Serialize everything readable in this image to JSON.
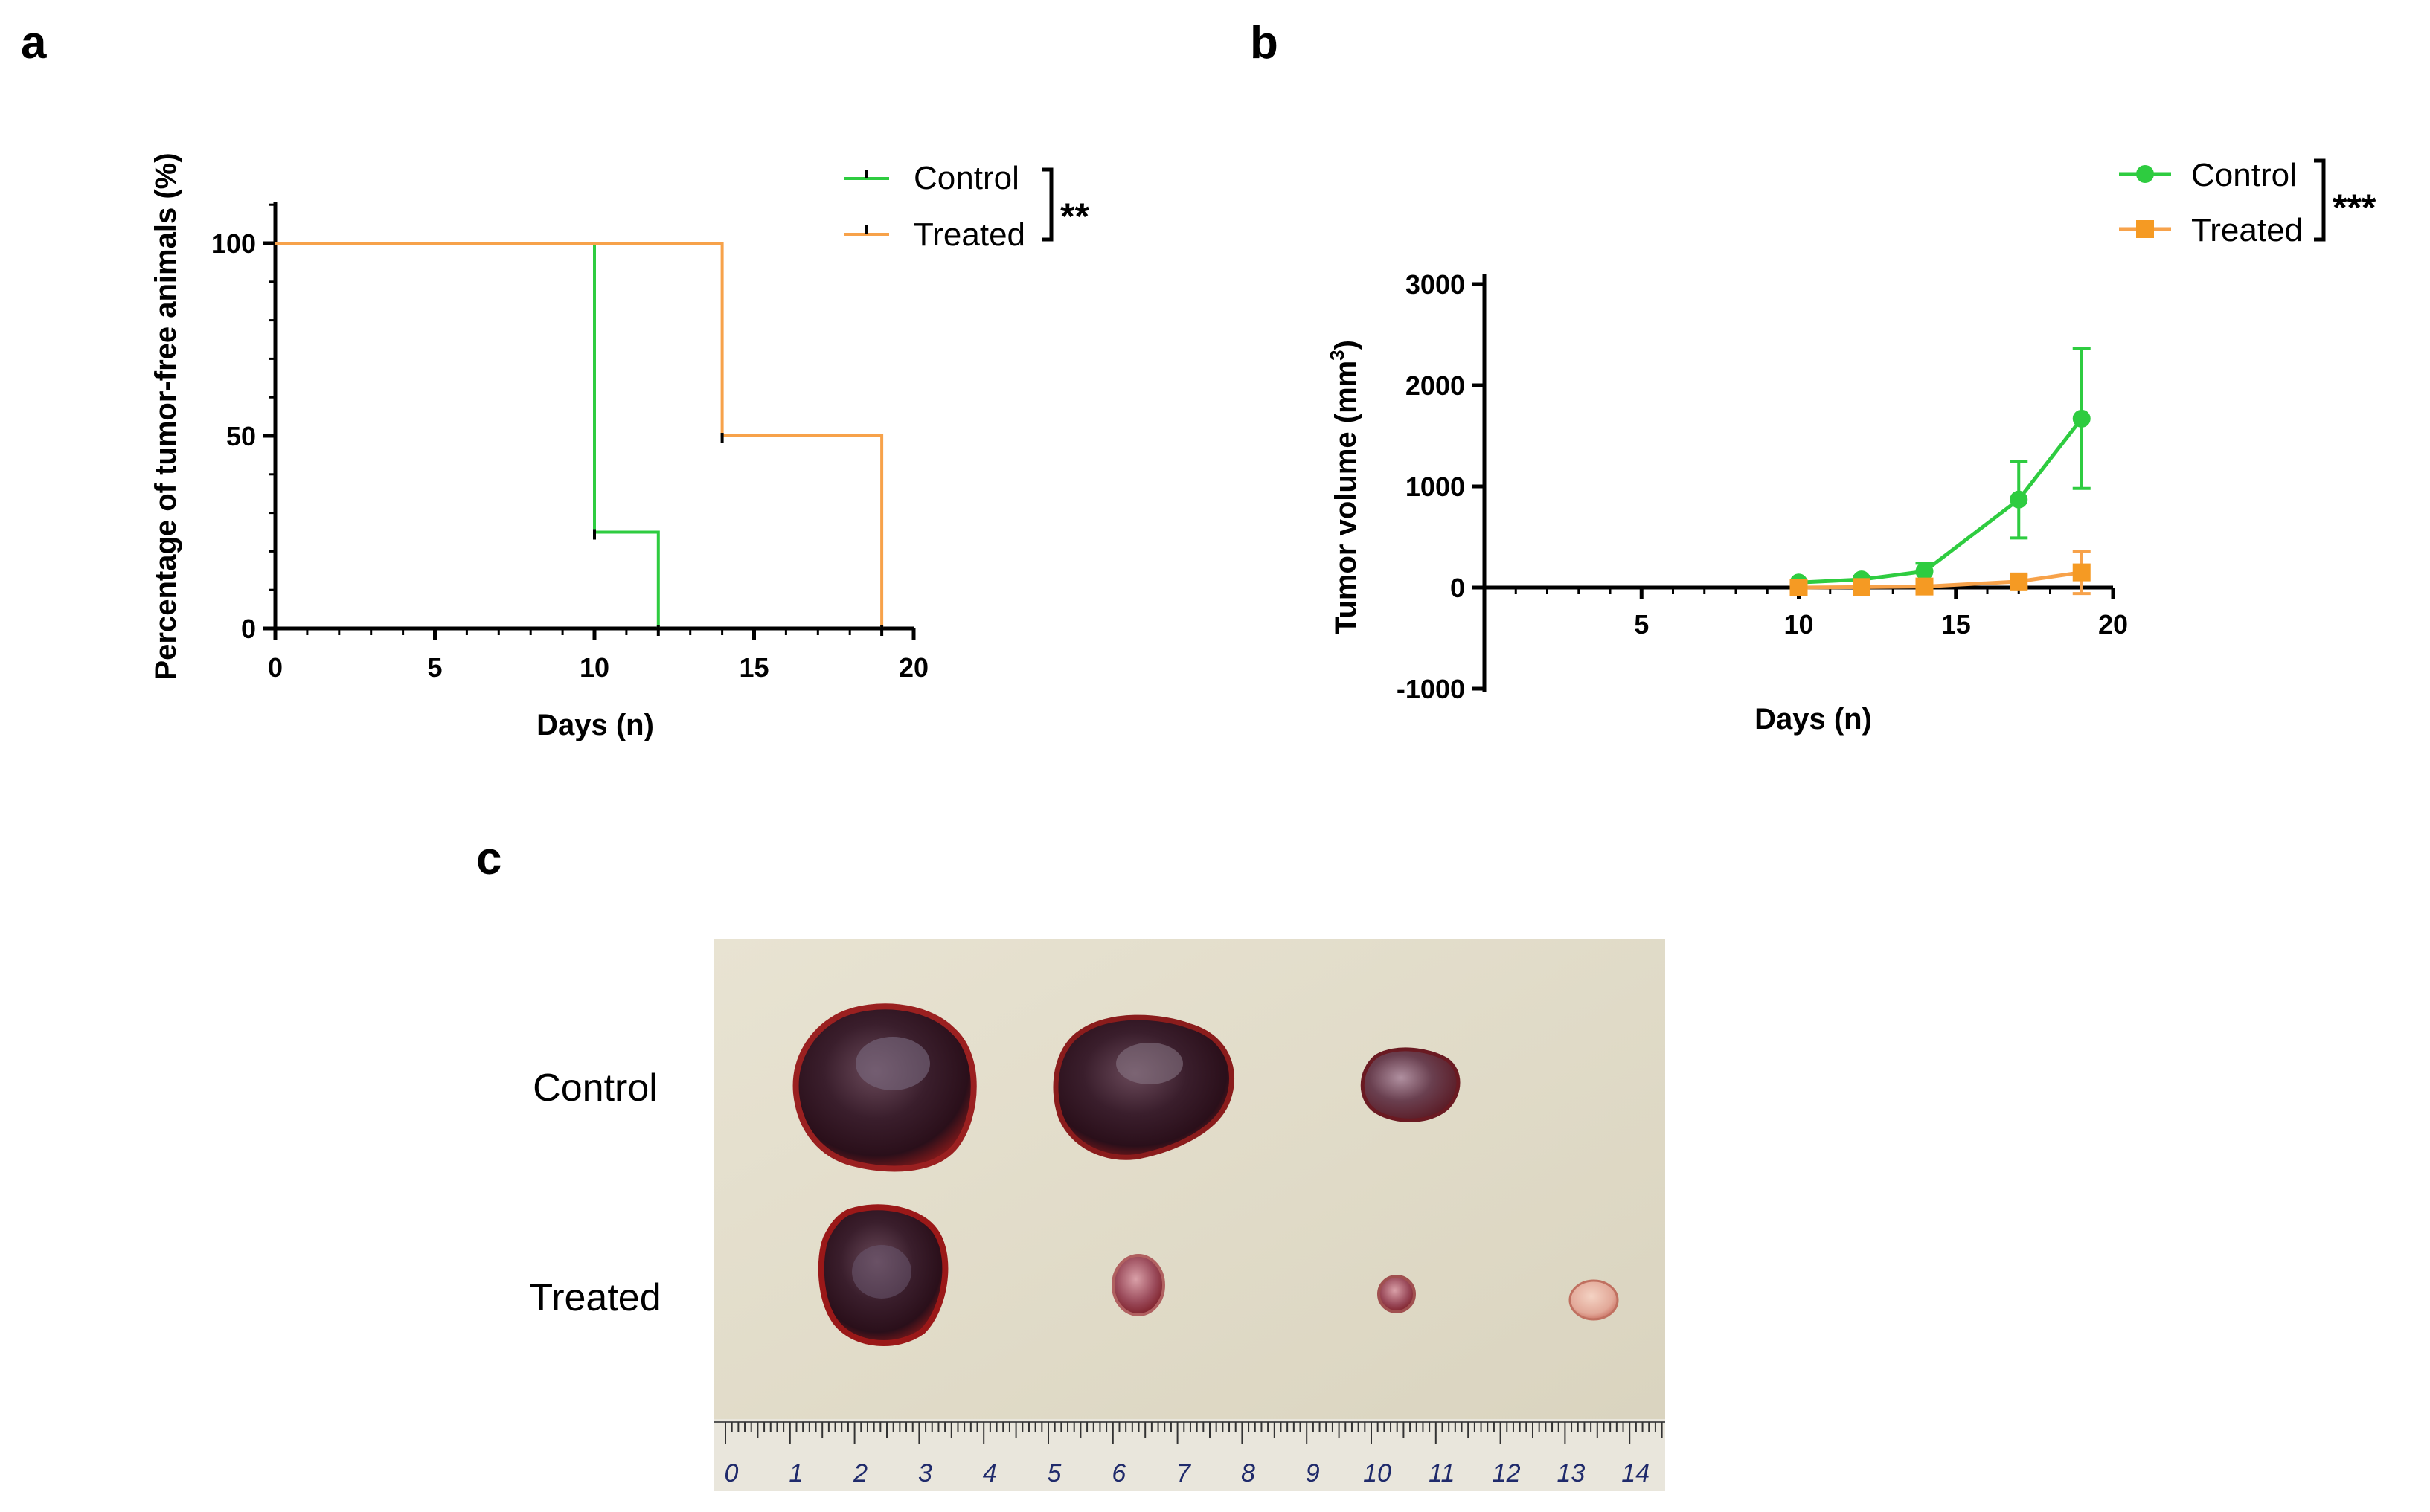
{
  "panels": {
    "a": "a",
    "b": "b",
    "c": "c"
  },
  "colors": {
    "control": "#2ecc40",
    "treated": "#f7a24a",
    "treated_marker": "#f59a23",
    "axis": "#000000"
  },
  "chart_data": [
    {
      "id": "a",
      "type": "line",
      "step": true,
      "title": "",
      "xlabel": "Days (n)",
      "ylabel": "Percentage of tumor-free animals (%)",
      "xlim": [
        0,
        20
      ],
      "ylim": [
        0,
        110
      ],
      "xticks": [
        0,
        5,
        10,
        15,
        20
      ],
      "yticks": [
        0,
        50,
        100
      ],
      "legend": {
        "position": "top-right",
        "significance": "**"
      },
      "series": [
        {
          "name": "Control",
          "x": [
            0,
            10,
            12
          ],
          "y": [
            100,
            25,
            0
          ]
        },
        {
          "name": "Treated",
          "x": [
            0,
            14,
            19
          ],
          "y": [
            100,
            50,
            0
          ]
        }
      ]
    },
    {
      "id": "b",
      "type": "line",
      "title": "",
      "xlabel": "Days (n)",
      "ylabel": "Tumor volume (mm3)",
      "ylabel_main": "Tumor volume (mm",
      "ylabel_sup": "3",
      "ylabel_end": ")",
      "xlim": [
        0,
        20
      ],
      "ylim": [
        -1000,
        3000
      ],
      "xticks": [
        5,
        10,
        15,
        20
      ],
      "yticks": [
        -1000,
        0,
        1000,
        2000,
        3000
      ],
      "legend": {
        "position": "top-right",
        "significance": "***"
      },
      "series": [
        {
          "name": "Control",
          "marker": "circle",
          "x": [
            10,
            12,
            14,
            17,
            19
          ],
          "y": [
            50,
            80,
            160,
            870,
            1670
          ],
          "err": [
            20,
            30,
            80,
            380,
            690
          ]
        },
        {
          "name": "Treated",
          "marker": "square",
          "x": [
            10,
            12,
            14,
            17,
            19
          ],
          "y": [
            0,
            5,
            10,
            60,
            150
          ],
          "err": [
            5,
            10,
            20,
            60,
            210
          ]
        }
      ]
    }
  ],
  "photo": {
    "row_labels": [
      "Control",
      "Treated"
    ],
    "ruler_numbers": [
      "0",
      "1",
      "2",
      "3",
      "4",
      "5",
      "6",
      "7",
      "8",
      "9",
      "10",
      "11",
      "12",
      "13",
      "14"
    ]
  }
}
